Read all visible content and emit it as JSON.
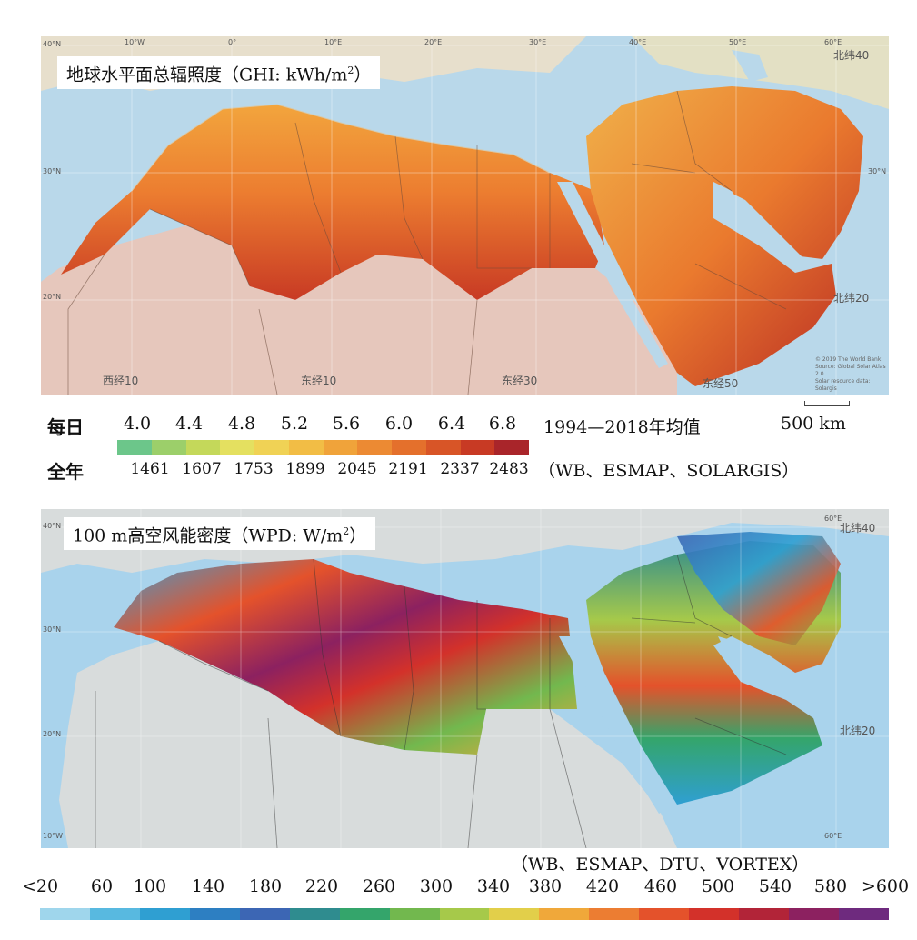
{
  "ghi": {
    "title": "地球水平面总辐照度（GHI: kWh/m",
    "title_sup": "2",
    "title_end": "）",
    "grid_labels": [
      "40°N",
      "30°N",
      "20°N",
      "10°W",
      "0°",
      "10°E",
      "20°E",
      "30°E",
      "40°E",
      "50°E",
      "60°E",
      "30°N"
    ],
    "region_labels": [
      "北纬40",
      "北纬20",
      "西经10",
      "东经10",
      "东经30",
      "东经50"
    ],
    "credit": [
      "© 2019 The World Bank",
      "Source: Global Solar Atlas 2.0",
      "Solar resource data: Solargis"
    ],
    "legend": {
      "daily_label": "每日",
      "annual_label": "全年",
      "daily_ticks": [
        "4.0",
        "4.4",
        "4.8",
        "5.2",
        "5.6",
        "6.0",
        "6.4",
        "6.8"
      ],
      "annual_ticks": [
        "1461",
        "1607",
        "1753",
        "1899",
        "2045",
        "2191",
        "2337",
        "2483"
      ],
      "colors": [
        "#6cc68a",
        "#9ccf6a",
        "#c4d85a",
        "#e4e060",
        "#f0d255",
        "#f2bd45",
        "#f0a33a",
        "#ec8a33",
        "#e4702c",
        "#d85527",
        "#c83a24",
        "#a9252a"
      ],
      "period": "1994—2018年均值",
      "scale": "500 km",
      "source": "（WB、ESMAP、SOLARGIS）"
    }
  },
  "wpd": {
    "title": "100 m高空风能密度（WPD: W/m",
    "title_sup": "2",
    "title_end": "）",
    "grid_labels": [
      "40°N",
      "30°N",
      "20°N",
      "10°W",
      "60°E",
      "60°E"
    ],
    "region_labels": [
      "北纬40",
      "北纬20"
    ],
    "legend": {
      "source": "（WB、ESMAP、DTU、VORTEX）",
      "ticks": [
        "<20",
        "60",
        "100",
        "140",
        "180",
        "220",
        "260",
        "300",
        "340",
        "380",
        "420",
        "460",
        "500",
        "540",
        "580",
        ">600"
      ],
      "colors": [
        "#9fd6ec",
        "#58b9e0",
        "#2f9fd2",
        "#2d7fc2",
        "#3c66b4",
        "#2f8c8f",
        "#34a56b",
        "#72b84e",
        "#a6c94a",
        "#e2cf4a",
        "#f0a83a",
        "#ec7d32",
        "#e4522b",
        "#d3312a",
        "#b22438",
        "#8c2160",
        "#6e2a7e"
      ]
    }
  },
  "colors": {
    "sea": "#b9d8ea",
    "land": "#e7dfcc",
    "africa_south": "#e6c7bc",
    "grey_land": "#d8dcdc",
    "sea2": "#a9d3ec"
  }
}
